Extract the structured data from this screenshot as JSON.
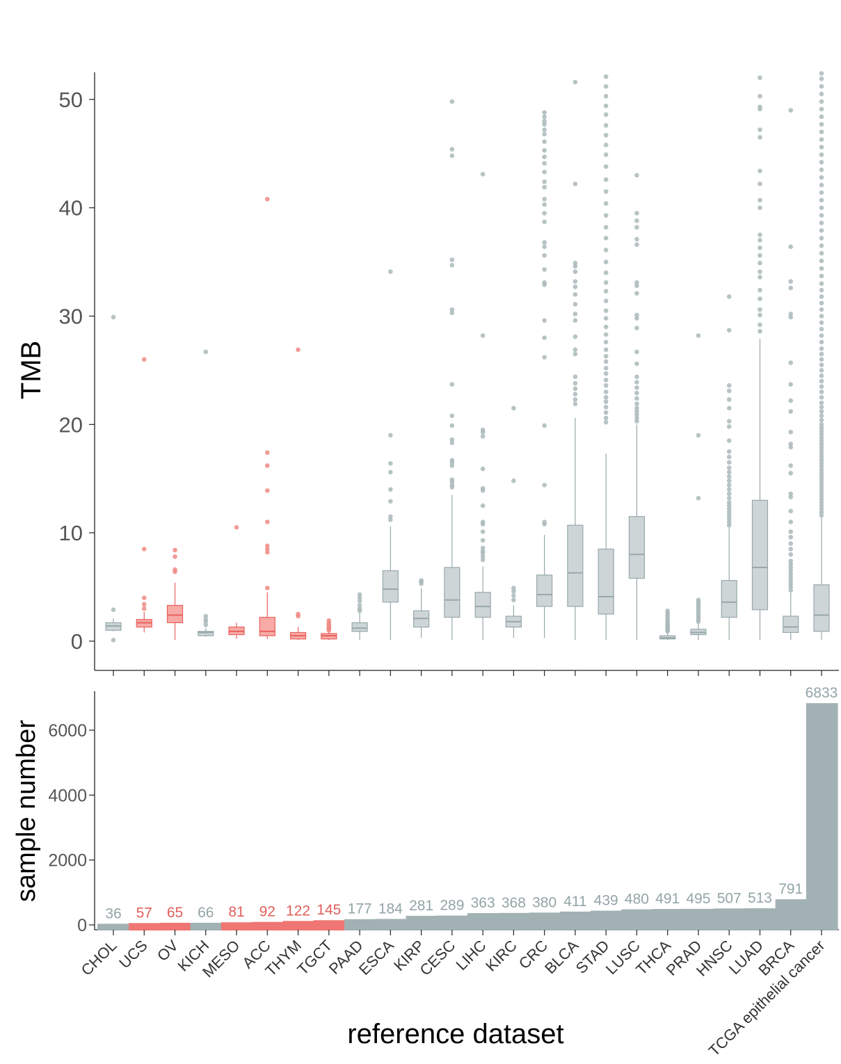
{
  "chart_data": [
    {
      "type": "box",
      "ylabel": "TMB",
      "ylim": [
        -2.7,
        52.5
      ],
      "yticks": [
        0,
        10,
        20,
        30,
        40,
        50
      ],
      "highlight_color": "#ef7672",
      "base_color": "#9fb0b3",
      "categories": [
        "CHOL",
        "UCS",
        "OV",
        "KICH",
        "MESO",
        "ACC",
        "THYM",
        "TGCT",
        "PAAD",
        "ESCA",
        "KIRP",
        "CESC",
        "LIHC",
        "KIRC",
        "CRC",
        "BLCA",
        "STAD",
        "LUSC",
        "THCA",
        "PRAD",
        "HNSC",
        "LUAD",
        "BRCA",
        "TCGA epithelial cancer"
      ],
      "highlighted": [
        false,
        true,
        true,
        false,
        true,
        true,
        true,
        true,
        false,
        false,
        false,
        false,
        false,
        false,
        false,
        false,
        false,
        false,
        false,
        false,
        false,
        false,
        false,
        false
      ],
      "boxes": [
        {
          "whislo": 0.9,
          "q1": 1.0,
          "med": 1.4,
          "q3": 1.7,
          "whishi": 2.1,
          "fliers": [
            2.9,
            0.1,
            29.9
          ]
        },
        {
          "whislo": 0.8,
          "q1": 1.3,
          "med": 1.7,
          "q3": 2.0,
          "whishi": 2.7,
          "fliers": [
            3.0,
            3.4,
            4.0,
            8.5,
            26.0
          ]
        },
        {
          "whislo": 0.1,
          "q1": 1.7,
          "med": 2.4,
          "q3": 3.3,
          "whishi": 5.4,
          "fliers": [
            6.4,
            6.6,
            7.8,
            8.4
          ]
        },
        {
          "whislo": 0.4,
          "q1": 0.5,
          "med": 0.8,
          "q3": 0.9,
          "whishi": 1.2,
          "fliers": [
            1.5,
            1.8,
            2.0,
            2.3,
            26.7
          ]
        },
        {
          "whislo": 0.2,
          "q1": 0.6,
          "med": 0.9,
          "q3": 1.3,
          "whishi": 1.7,
          "fliers": [
            10.5
          ]
        },
        {
          "whislo": 0.2,
          "q1": 0.5,
          "med": 0.9,
          "q3": 2.2,
          "whishi": 4.5,
          "fliers": [
            4.9,
            8.2,
            8.5,
            8.8,
            11.0,
            13.9,
            16.2,
            17.4,
            40.8
          ]
        },
        {
          "whislo": 0.1,
          "q1": 0.2,
          "med": 0.5,
          "q3": 0.8,
          "whishi": 1.3,
          "fliers": [
            2.3,
            2.5,
            26.9
          ]
        },
        {
          "whislo": 0.1,
          "q1": 0.2,
          "med": 0.5,
          "q3": 0.7,
          "whishi": 0.9,
          "fliers": [
            1.0,
            1.1,
            1.2,
            1.3,
            1.4,
            1.5,
            1.7,
            1.9
          ]
        },
        {
          "whislo": 0.1,
          "q1": 0.9,
          "med": 1.2,
          "q3": 1.7,
          "whishi": 2.6,
          "fliers": [
            2.8,
            3.0,
            3.3,
            3.7,
            4.0,
            4.3
          ]
        },
        {
          "whislo": 0.1,
          "q1": 3.6,
          "med": 4.8,
          "q3": 6.5,
          "whishi": 10.6,
          "fliers": [
            11.2,
            11.5,
            12.9,
            14.0,
            15.6,
            16.4,
            19.0,
            34.1
          ]
        },
        {
          "whislo": 0.3,
          "q1": 1.3,
          "med": 2.1,
          "q3": 2.8,
          "whishi": 4.9,
          "fliers": [
            5.3,
            5.5,
            5.6
          ]
        },
        {
          "whislo": 0.1,
          "q1": 2.2,
          "med": 3.8,
          "q3": 6.8,
          "whishi": 13.5,
          "fliers": [
            14.2,
            14.4,
            14.7,
            14.9,
            16.2,
            16.5,
            16.7,
            18.3,
            18.6,
            19.9,
            20.8,
            23.7,
            30.3,
            30.6,
            34.7,
            35.2,
            44.8,
            45.4,
            49.8
          ]
        },
        {
          "whislo": 0.1,
          "q1": 2.2,
          "med": 3.2,
          "q3": 4.5,
          "whishi": 6.9,
          "fliers": [
            7.5,
            7.8,
            8.1,
            8.3,
            8.6,
            9.3,
            10.1,
            10.8,
            11.0,
            12.5,
            13.9,
            14.1,
            15.9,
            18.9,
            19.3,
            19.5,
            28.2,
            43.1
          ]
        },
        {
          "whislo": 0.3,
          "q1": 1.3,
          "med": 1.8,
          "q3": 2.3,
          "whishi": 3.3,
          "fliers": [
            3.8,
            4.2,
            4.6,
            4.9,
            14.8,
            21.5
          ]
        },
        {
          "whislo": 0.3,
          "q1": 3.2,
          "med": 4.3,
          "q3": 6.1,
          "whishi": 9.8,
          "fliers": [
            10.8,
            11.0,
            14.4,
            19.9,
            26.2,
            28.0,
            29.6,
            32.9,
            33.1,
            34.3,
            35.6,
            36.4,
            36.8,
            38.7,
            39.5,
            40.3,
            40.8,
            41.9,
            42.4,
            43.3,
            44.1,
            44.7,
            45.3,
            46.1,
            46.8,
            47.2,
            47.7,
            48.0,
            48.4,
            48.8
          ]
        },
        {
          "whislo": 0.1,
          "q1": 3.2,
          "med": 6.3,
          "q3": 10.7,
          "whishi": 20.6,
          "fliers": [
            21.9,
            22.3,
            22.8,
            23.3,
            23.8,
            24.4,
            26.5,
            26.9,
            28.1,
            29.6,
            30.2,
            31.1,
            32.0,
            32.7,
            33.2,
            34.1,
            34.6,
            34.9,
            42.2,
            51.6
          ]
        },
        {
          "whislo": 0.1,
          "q1": 2.5,
          "med": 4.1,
          "q3": 8.5,
          "whishi": 17.3,
          "fliers": [
            20.2,
            20.6,
            21.1,
            21.6,
            22.1,
            22.5,
            23.0,
            23.6,
            24.1,
            24.7,
            25.2,
            25.8,
            26.3,
            26.9,
            27.6,
            28.3,
            29.0,
            29.8,
            30.5,
            31.4,
            32.3,
            33.1,
            34.0,
            35.0,
            36.1,
            37.2,
            38.2,
            39.3,
            40.4,
            41.5,
            42.6,
            43.8,
            44.9,
            45.8,
            46.7,
            47.6,
            48.6,
            49.4,
            50.3,
            51.2,
            52.1
          ]
        },
        {
          "whislo": 0.1,
          "q1": 5.8,
          "med": 8.0,
          "q3": 11.5,
          "whishi": 20.0,
          "fliers": [
            20.3,
            20.6,
            20.9,
            21.2,
            21.5,
            21.9,
            22.4,
            22.9,
            23.4,
            23.9,
            24.4,
            25.6,
            26.7,
            28.9,
            29.8,
            30.1,
            32.1,
            32.8,
            33.1,
            36.6,
            37.1,
            38.2,
            38.8,
            39.5,
            43.0
          ]
        },
        {
          "whislo": 0.1,
          "q1": 0.2,
          "med": 0.3,
          "q3": 0.5,
          "whishi": 0.8,
          "fliers": [
            0.9,
            1.0,
            1.1,
            1.2,
            1.3,
            1.4,
            1.5,
            1.6,
            1.7,
            1.8,
            2.0,
            2.2,
            2.4,
            2.6,
            2.8
          ]
        },
        {
          "whislo": 0.1,
          "q1": 0.6,
          "med": 0.8,
          "q3": 1.1,
          "whishi": 1.7,
          "fliers": [
            1.8,
            2.0,
            2.2,
            2.4,
            2.6,
            2.8,
            3.0,
            3.2,
            3.4,
            3.6,
            3.8,
            13.2,
            19.0,
            28.2
          ]
        },
        {
          "whislo": 0.1,
          "q1": 2.2,
          "med": 3.6,
          "q3": 5.6,
          "whishi": 10.5,
          "fliers": [
            10.7,
            11.0,
            11.3,
            11.6,
            11.9,
            12.2,
            12.5,
            12.8,
            13.2,
            13.6,
            14.0,
            14.4,
            14.8,
            15.2,
            15.6,
            16.0,
            16.5,
            17.0,
            17.5,
            18.5,
            19.8,
            20.3,
            21.5,
            22.3,
            23.1,
            23.6,
            28.7,
            31.8
          ]
        },
        {
          "whislo": 0.1,
          "q1": 2.9,
          "med": 6.8,
          "q3": 13.0,
          "whishi": 27.9,
          "fliers": [
            28.6,
            29.2,
            30.1,
            30.6,
            31.6,
            32.4,
            33.6,
            34.1,
            34.9,
            35.6,
            36.3,
            37.0,
            37.5,
            40.0,
            40.7,
            42.2,
            43.4,
            46.5,
            47.2,
            49.1,
            49.3,
            50.3,
            52.0
          ]
        },
        {
          "whislo": 0.1,
          "q1": 0.8,
          "med": 1.3,
          "q3": 2.3,
          "whishi": 4.5,
          "fliers": [
            4.7,
            5.0,
            5.3,
            5.6,
            5.9,
            6.2,
            6.5,
            6.8,
            7.1,
            7.4,
            8.0,
            8.5,
            9.0,
            9.6,
            10.1,
            11.0,
            12.0,
            13.3,
            13.6,
            15.5,
            16.2,
            17.9,
            18.2,
            19.3,
            21.2,
            22.2,
            23.7,
            25.7,
            29.9,
            30.2,
            32.6,
            33.2,
            36.4,
            49.0
          ]
        },
        {
          "whislo": 0.1,
          "q1": 0.9,
          "med": 2.4,
          "q3": 5.2,
          "whishi": 11.4,
          "fliers": [
            11.6,
            11.9,
            12.2,
            12.5,
            12.8,
            13.1,
            13.4,
            13.7,
            14.0,
            14.3,
            14.6,
            14.9,
            15.2,
            15.5,
            15.8,
            16.1,
            16.4,
            16.7,
            17.0,
            17.3,
            17.6,
            17.9,
            18.2,
            18.5,
            18.8,
            19.1,
            19.4,
            19.7,
            20.0,
            20.4,
            20.8,
            21.2,
            21.6,
            22.0,
            22.5,
            23.0,
            23.5,
            24.0,
            24.5,
            25.0,
            25.5,
            26.0,
            26.5,
            27.0,
            27.6,
            28.2,
            28.8,
            29.4,
            30.0,
            30.6,
            31.2,
            31.8,
            32.4,
            33.0,
            33.7,
            34.4,
            35.1,
            35.8,
            36.5,
            37.2,
            37.9,
            38.6,
            39.3,
            40.0,
            40.7,
            41.4,
            42.1,
            42.8,
            43.5,
            44.2,
            44.9,
            45.6,
            46.3,
            47.0,
            47.7,
            48.4,
            49.1,
            49.8,
            50.5,
            51.2,
            51.9,
            52.4
          ]
        }
      ]
    },
    {
      "type": "bar",
      "xlabel": "reference dataset",
      "ylabel": "sample number",
      "ylim": [
        -150,
        7200
      ],
      "yticks": [
        0,
        2000,
        4000,
        6000
      ],
      "values": [
        36,
        57,
        65,
        66,
        81,
        92,
        122,
        145,
        177,
        184,
        281,
        289,
        363,
        368,
        380,
        411,
        439,
        480,
        491,
        495,
        507,
        513,
        791,
        6833
      ]
    }
  ]
}
